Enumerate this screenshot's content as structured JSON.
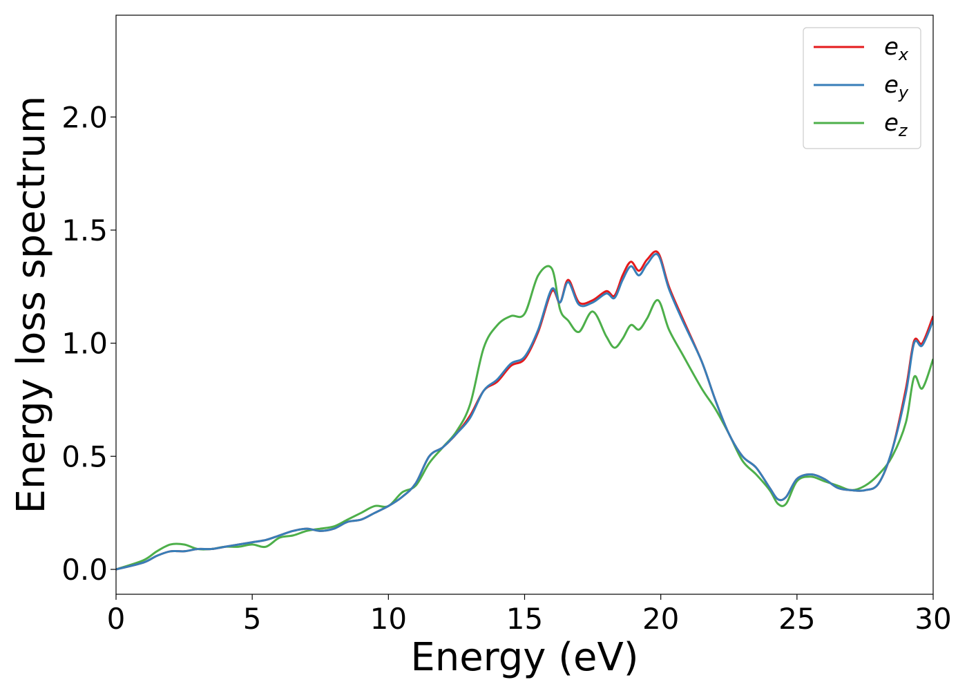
{
  "chart_data": {
    "type": "line",
    "xlabel": "Energy (eV)",
    "ylabel": "Energy loss spectrum",
    "xlim": [
      0,
      30
    ],
    "ylim": [
      -0.11,
      2.45
    ],
    "xticks": [
      0,
      5,
      10,
      15,
      20,
      25,
      30
    ],
    "xtick_labels": [
      "0",
      "5",
      "10",
      "15",
      "20",
      "25",
      "30"
    ],
    "yticks": [
      0.0,
      0.5,
      1.0,
      1.5,
      2.0
    ],
    "ytick_labels": [
      "0.0",
      "0.5",
      "1.0",
      "1.5",
      "2.0"
    ],
    "grid": false,
    "legend_position": "top-right",
    "series": [
      {
        "name": "e_x",
        "legend_base": "e",
        "legend_sub": "x",
        "color": "#e41a1c",
        "x": [
          0,
          1,
          1.5,
          2,
          2.5,
          3,
          3.5,
          4,
          4.5,
          5,
          5.5,
          6,
          6.5,
          7,
          7.5,
          8,
          8.5,
          9,
          9.5,
          10,
          10.5,
          11,
          11.5,
          12,
          12.5,
          13,
          13.5,
          14,
          14.5,
          15,
          15.5,
          16,
          16.3,
          16.6,
          17,
          17.5,
          18,
          18.3,
          18.6,
          18.9,
          19.2,
          19.5,
          19.9,
          20.3,
          20.8,
          21.5,
          22,
          22.5,
          23,
          23.5,
          24,
          24.3,
          24.6,
          25,
          25.5,
          26,
          26.5,
          27,
          27.5,
          28,
          28.5,
          29,
          29.3,
          29.6,
          30
        ],
        "y": [
          0,
          0.03,
          0.06,
          0.08,
          0.08,
          0.09,
          0.09,
          0.1,
          0.11,
          0.12,
          0.13,
          0.15,
          0.17,
          0.18,
          0.17,
          0.18,
          0.21,
          0.22,
          0.25,
          0.28,
          0.32,
          0.38,
          0.5,
          0.54,
          0.6,
          0.68,
          0.79,
          0.83,
          0.9,
          0.93,
          1.05,
          1.23,
          1.18,
          1.28,
          1.18,
          1.19,
          1.23,
          1.21,
          1.3,
          1.36,
          1.32,
          1.37,
          1.4,
          1.25,
          1.11,
          0.92,
          0.75,
          0.6,
          0.5,
          0.45,
          0.36,
          0.31,
          0.32,
          0.4,
          0.42,
          0.4,
          0.36,
          0.35,
          0.35,
          0.38,
          0.53,
          0.8,
          1.01,
          1.0,
          1.12
        ]
      },
      {
        "name": "e_y",
        "legend_base": "e",
        "legend_sub": "y",
        "color": "#377eb8",
        "x": [
          0,
          1,
          1.5,
          2,
          2.5,
          3,
          3.5,
          4,
          4.5,
          5,
          5.5,
          6,
          6.5,
          7,
          7.5,
          8,
          8.5,
          9,
          9.5,
          10,
          10.5,
          11,
          11.5,
          12,
          12.5,
          13,
          13.5,
          14,
          14.5,
          15,
          15.5,
          16,
          16.3,
          16.6,
          17,
          17.5,
          18,
          18.3,
          18.6,
          18.9,
          19.2,
          19.5,
          19.9,
          20.3,
          20.8,
          21.5,
          22,
          22.5,
          23,
          23.5,
          24,
          24.3,
          24.6,
          25,
          25.5,
          26,
          26.5,
          27,
          27.5,
          28,
          28.5,
          29,
          29.3,
          29.6,
          30
        ],
        "y": [
          0,
          0.03,
          0.06,
          0.08,
          0.08,
          0.09,
          0.09,
          0.1,
          0.11,
          0.12,
          0.13,
          0.15,
          0.17,
          0.18,
          0.17,
          0.18,
          0.21,
          0.22,
          0.25,
          0.28,
          0.32,
          0.38,
          0.5,
          0.54,
          0.6,
          0.67,
          0.79,
          0.84,
          0.91,
          0.94,
          1.06,
          1.24,
          1.18,
          1.27,
          1.17,
          1.18,
          1.22,
          1.2,
          1.28,
          1.34,
          1.3,
          1.35,
          1.39,
          1.24,
          1.1,
          0.92,
          0.75,
          0.6,
          0.5,
          0.45,
          0.36,
          0.31,
          0.32,
          0.4,
          0.42,
          0.4,
          0.36,
          0.35,
          0.35,
          0.38,
          0.53,
          0.78,
          1.0,
          0.99,
          1.1
        ]
      },
      {
        "name": "e_z",
        "legend_base": "e",
        "legend_sub": "z",
        "color": "#4daf4a",
        "x": [
          0,
          1,
          1.5,
          2,
          2.5,
          3,
          3.5,
          4,
          4.5,
          5,
          5.5,
          6,
          6.5,
          7,
          7.5,
          8,
          8.5,
          9,
          9.5,
          10,
          10.5,
          11,
          11.5,
          12,
          12.5,
          13,
          13.5,
          14,
          14.5,
          15,
          15.5,
          16,
          16.3,
          16.6,
          17,
          17.5,
          18,
          18.3,
          18.6,
          18.9,
          19.2,
          19.5,
          19.9,
          20.3,
          20.8,
          21.5,
          22,
          22.5,
          23,
          23.5,
          24,
          24.3,
          24.6,
          25,
          25.5,
          26,
          26.5,
          27,
          27.5,
          28,
          28.5,
          29,
          29.3,
          29.6,
          30
        ],
        "y": [
          0,
          0.04,
          0.08,
          0.11,
          0.11,
          0.09,
          0.09,
          0.1,
          0.1,
          0.11,
          0.1,
          0.14,
          0.15,
          0.17,
          0.18,
          0.19,
          0.22,
          0.25,
          0.28,
          0.28,
          0.34,
          0.37,
          0.47,
          0.54,
          0.61,
          0.73,
          0.98,
          1.08,
          1.12,
          1.13,
          1.3,
          1.33,
          1.15,
          1.1,
          1.05,
          1.14,
          1.03,
          0.98,
          1.02,
          1.08,
          1.06,
          1.11,
          1.19,
          1.06,
          0.95,
          0.8,
          0.71,
          0.6,
          0.48,
          0.42,
          0.35,
          0.29,
          0.29,
          0.39,
          0.41,
          0.39,
          0.37,
          0.35,
          0.37,
          0.42,
          0.5,
          0.65,
          0.85,
          0.8,
          0.93
        ]
      }
    ]
  }
}
